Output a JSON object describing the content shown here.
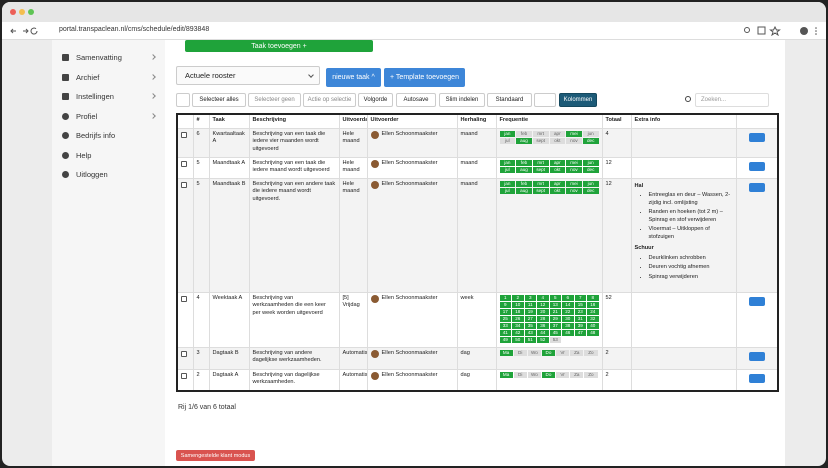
{
  "browser": {
    "url": "portal.transpaclean.nl/cms/schedule/edit/893848"
  },
  "sidebar": [
    "Samenvatting",
    "Archief",
    "Instellingen",
    "Profiel",
    "Bedrijfs info",
    "Help",
    "Uitloggen"
  ],
  "top_button": "Taak toevoegen +",
  "schedule_select": "Actuele rooster",
  "buttons": [
    "nieuwe taak ^",
    "+ Template toevoegen"
  ],
  "toolbar": [
    "Selecteer alles",
    "Selecteer geen",
    "Actie op selectie",
    "Volgorde",
    "Autosave",
    "Slim indelen",
    "Standaard",
    "Kolommen"
  ],
  "search_placeholder": "Zoeken...",
  "table": {
    "headers": [
      "#",
      "Taak",
      "Beschrijving",
      "Uitvoerdag",
      "Uitvoerder",
      "Herhaling",
      "Frequentie",
      "Totaal",
      "Extra info"
    ],
    "months": [
      "jan",
      "feb",
      "mrt",
      "apr",
      "mei",
      "jun",
      "jul",
      "aug",
      "sept",
      "okt",
      "nov",
      "dec"
    ],
    "weekdays": [
      "Ma",
      "Di",
      "Wo",
      "Do",
      "Vr",
      "Za",
      "Zo"
    ],
    "weeks": [
      1,
      2,
      3,
      4,
      5,
      6,
      7,
      8,
      9,
      10,
      11,
      12,
      13,
      14,
      15,
      16,
      17,
      18,
      19,
      20,
      21,
      22,
      23,
      24,
      25,
      26,
      27,
      28,
      29,
      30,
      31,
      32,
      33,
      34,
      35,
      36,
      37,
      38,
      39,
      40,
      41,
      42,
      43,
      44,
      45,
      46,
      47,
      48,
      49,
      50,
      51,
      52,
      53
    ],
    "rows": [
      {
        "id": 6,
        "task": "Kwartaaltaak A",
        "description": "Beschrijving van een taak die iedere vier maanden wordt uitgevoerd",
        "day": "Hele maand",
        "assignee": "Ellen Schoonmaakster",
        "repeat": "maand",
        "frequency": "months",
        "active": [
          0,
          4,
          7,
          11
        ],
        "total": 4
      },
      {
        "id": 5,
        "task": "Maandtaak A",
        "description": "Beschrijving van een taak die iedere maand wordt uitgevoerd",
        "day": "Hele maand",
        "assignee": "Ellen Schoonmaakster",
        "repeat": "maand",
        "frequency": "months",
        "active": [
          0,
          1,
          2,
          3,
          4,
          5,
          6,
          7,
          8,
          9,
          10,
          11
        ],
        "total": 12
      },
      {
        "id": 5,
        "task": "Maandtaak B",
        "description": "Beschrijving van een andere taak die iedere maand wordt uitgevoerd.",
        "day": "Hele maand",
        "assignee": "Ellen Schoonmaakster",
        "repeat": "maand",
        "frequency": "months",
        "active": [
          0,
          1,
          2,
          3,
          4,
          5,
          6,
          7,
          8,
          9,
          10,
          11
        ],
        "total": 12,
        "extra": [
          {
            "title": "Hal",
            "items": [
              "Entreeglas en deur – Wassen, 2-zijdig incl. omlijsting",
              "Randen en hoeken (tot 2 m) – Spinrag en stof verwijderen",
              "Vloermat – Uitkloppen of stofzuigen"
            ]
          },
          {
            "title": "Schuur",
            "items": [
              "Deurklinken schrobben",
              "Deuren vochtig afnemen",
              "Spinrag verwijderen"
            ]
          }
        ]
      },
      {
        "id": 4,
        "task": "Weektaak A",
        "description": "Beschrijving van werkzaamheden die een keer per week worden uitgevoerd",
        "day": "[5] Vrijdag",
        "assignee": "Ellen Schoonmaakster",
        "repeat": "week",
        "frequency": "weeks",
        "active": [
          0,
          1,
          2,
          3,
          4,
          5,
          6,
          7,
          8,
          9,
          10,
          11,
          12,
          13,
          14,
          15,
          16,
          17,
          18,
          19,
          20,
          21,
          22,
          23,
          24,
          25,
          26,
          27,
          28,
          29,
          30,
          31,
          32,
          33,
          34,
          35,
          36,
          37,
          38,
          39,
          40,
          41,
          42,
          43,
          44,
          45,
          46,
          47,
          48,
          49,
          50,
          51
        ],
        "total": 52
      },
      {
        "id": 3,
        "task": "Dagtaak B",
        "description": "Beschrijving van andere dagelijkse werkzaamheden.",
        "day": "Automatisch",
        "assignee": "Ellen Schoonmaakster",
        "repeat": "dag",
        "frequency": "weekdays",
        "active": [
          0,
          3
        ],
        "total": 2
      },
      {
        "id": 2,
        "task": "Dagtaak A",
        "description": "Beschrijving van dagelijkse werkzaamheden.",
        "day": "Automatisch",
        "assignee": "Ellen Schoonmaakster",
        "repeat": "dag",
        "frequency": "weekdays",
        "active": [
          0,
          3
        ],
        "total": 2
      }
    ]
  },
  "footer": "Rij 1/6 van 6 totaal",
  "mode_button": "Samengestelde klant modus"
}
